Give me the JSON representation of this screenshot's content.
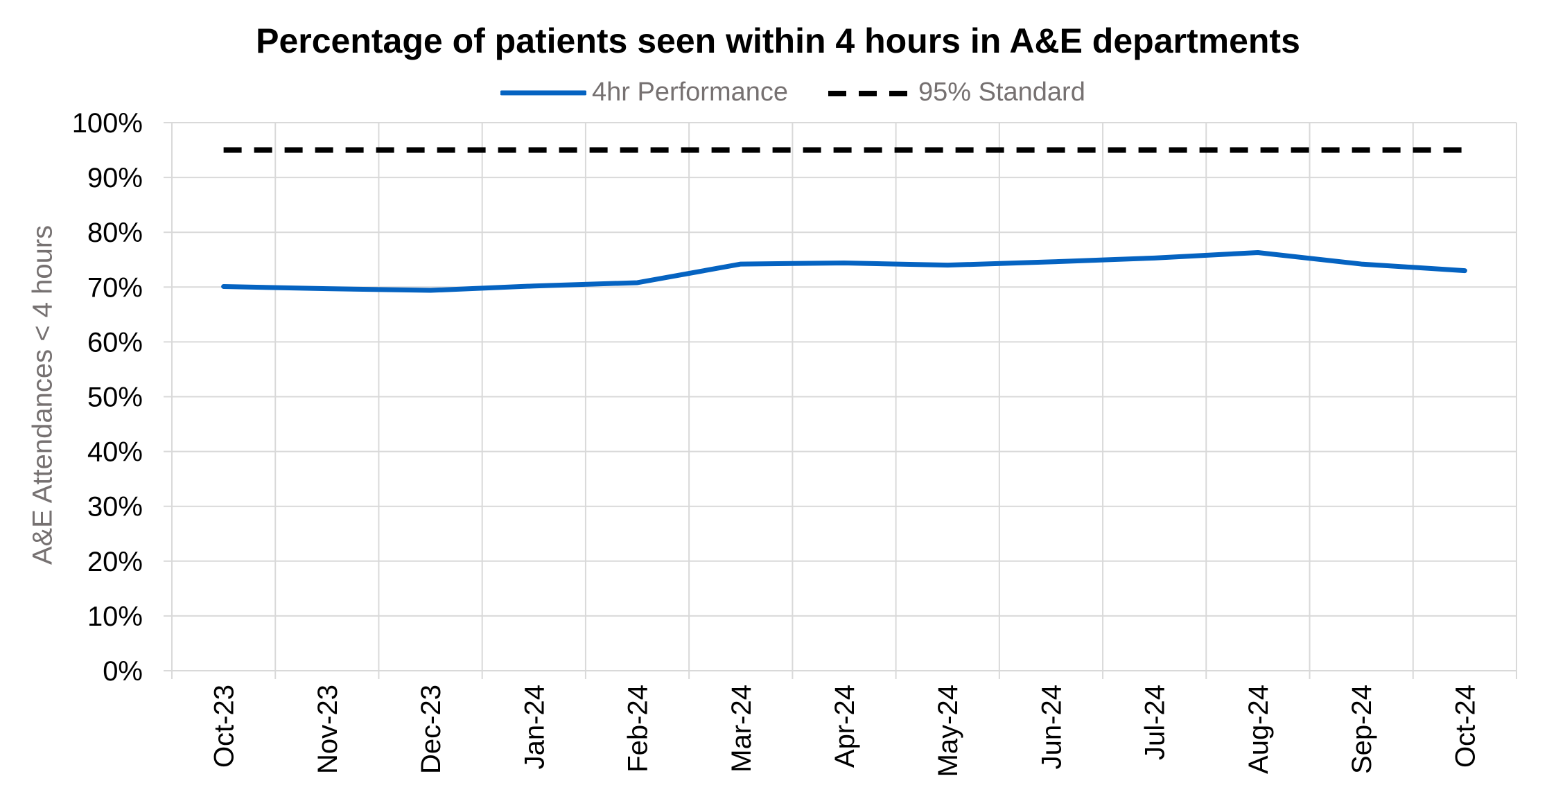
{
  "chart_data": {
    "type": "line",
    "title": "Percentage of patients seen within 4 hours in A&E departments",
    "ylabel": "A&E Attendances < 4 hours",
    "xlabel": "",
    "categories": [
      "Oct-23",
      "Nov-23",
      "Dec-23",
      "Jan-24",
      "Feb-24",
      "Mar-24",
      "Apr-24",
      "May-24",
      "Jun-24",
      "Jul-24",
      "Aug-24",
      "Sep-24",
      "Oct-24"
    ],
    "series": [
      {
        "name": "4hr Performance",
        "color": "#0563C1",
        "style": "solid",
        "values": [
          70.1,
          69.7,
          69.4,
          70.2,
          70.8,
          74.2,
          74.4,
          74.0,
          74.6,
          75.3,
          76.3,
          74.2,
          73.0
        ]
      },
      {
        "name": "95% Standard",
        "color": "#000000",
        "style": "dashed",
        "values": [
          95,
          95,
          95,
          95,
          95,
          95,
          95,
          95,
          95,
          95,
          95,
          95,
          95
        ]
      }
    ],
    "ylim": [
      0,
      100
    ],
    "yticks": [
      "0%",
      "10%",
      "20%",
      "30%",
      "40%",
      "50%",
      "60%",
      "70%",
      "80%",
      "90%",
      "100%"
    ],
    "grid": true,
    "legend_position": "top"
  }
}
